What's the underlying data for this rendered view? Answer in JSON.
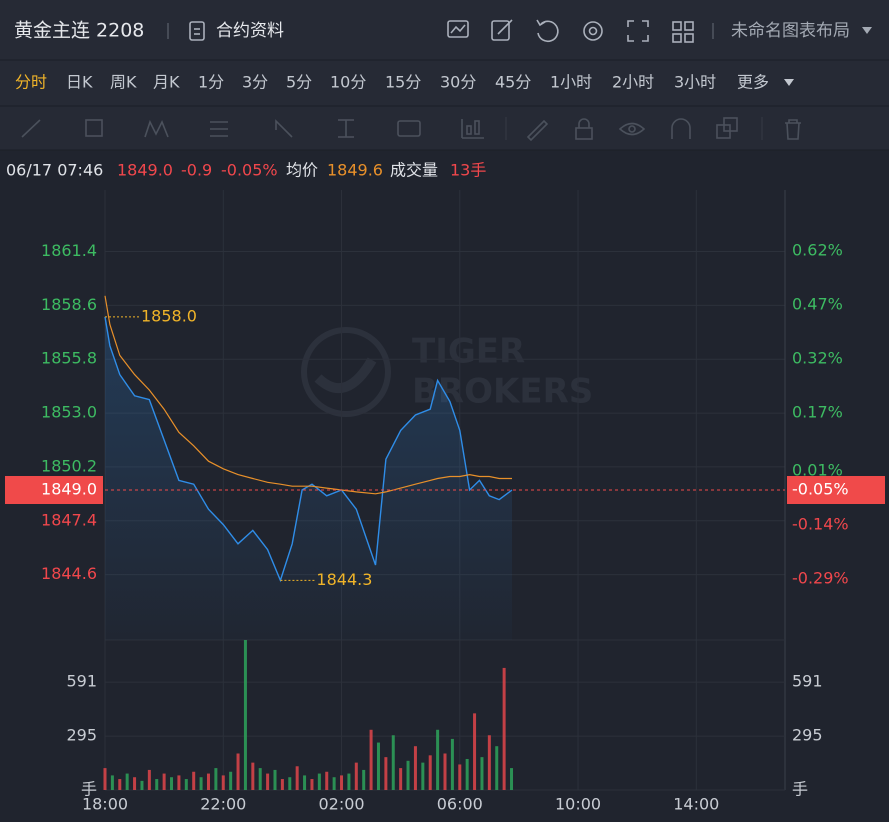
{
  "header": {
    "title": "黄金主连 2208",
    "contract_info": "合约资料",
    "layout_name": "未命名图表布局"
  },
  "timeframes": {
    "items": [
      "分时",
      "日K",
      "周K",
      "月K",
      "1分",
      "3分",
      "5分",
      "10分",
      "15分",
      "30分",
      "45分",
      "1小时",
      "2小时",
      "3小时"
    ],
    "active": 0,
    "more": "更多"
  },
  "info": {
    "datetime": "06/17 07:46",
    "price": "1849.0",
    "change": "-0.9",
    "change_pct": "-0.05%",
    "avg_label": "均价",
    "avg": "1849.6",
    "volume_label": "成交量",
    "volume": "13手"
  },
  "watermark": [
    "TIGER",
    "BROKERS"
  ],
  "chart_data": {
    "type": "line",
    "xlim": [
      "18:00",
      "17:00"
    ],
    "xticks": [
      "18:00",
      "22:00",
      "02:00",
      "06:00",
      "10:00",
      "14:00"
    ],
    "ylim": [
      1841.2,
      1864.6
    ],
    "yticks": [
      1861.4,
      1858.6,
      1855.8,
      {
        "value": 1853.0,
        "label": "1853.0"
      },
      1850.2,
      1847.4,
      1844.6
    ],
    "y2lim": [
      -0.46,
      0.79
    ],
    "y2ticks": [
      {
        "value": 0.62,
        "label": "0.62%"
      },
      {
        "value": 0.47,
        "label": "0.47%"
      },
      {
        "value": 0.32,
        "label": "0.32%"
      },
      {
        "value": 0.17,
        "label": "0.17%"
      },
      {
        "value": 0.01,
        "label": "0.01%"
      },
      {
        "value": -0.14,
        "label": "-0.14%"
      },
      {
        "value": -0.29,
        "label": "-0.29%"
      }
    ],
    "up_color": "#3dbb62",
    "down_color": "#f0474c",
    "grid": true,
    "x": [
      "18:00",
      "18:10",
      "18:30",
      "19:00",
      "19:30",
      "20:00",
      "20:30",
      "21:00",
      "21:30",
      "22:00",
      "22:30",
      "23:00",
      "23:30",
      "23:56",
      "00:20",
      "00:40",
      "01:00",
      "01:30",
      "02:00",
      "02:30",
      "03:09",
      "03:30",
      "04:00",
      "04:30",
      "05:00",
      "05:15",
      "05:40",
      "06:00",
      "06:20",
      "06:40",
      "07:00",
      "07:20",
      "07:46"
    ],
    "series": [
      {
        "color": "#2f8de8",
        "values": [
          1858.0,
          1856.5,
          1855.0,
          1853.9,
          1853.7,
          1851.6,
          1849.5,
          1849.3,
          1848.0,
          1847.2,
          1846.2,
          1846.9,
          1845.9,
          1844.3,
          1846.2,
          1849.0,
          1849.3,
          1848.7,
          1849.0,
          1848.0,
          1845.1,
          1850.6,
          1852.1,
          1852.9,
          1853.2,
          1854.7,
          1853.6,
          1852.1,
          1849.0,
          1849.5,
          1848.7,
          1848.5,
          1849.0
        ]
      },
      {
        "color": "#e8902a",
        "values": [
          1859.1,
          1857.6,
          1856.0,
          1855.0,
          1854.2,
          1853.2,
          1852.0,
          1851.3,
          1850.5,
          1850.1,
          1849.8,
          1849.6,
          1849.4,
          1849.3,
          1849.2,
          1849.2,
          1849.2,
          1849.1,
          1849.0,
          1848.9,
          1848.8,
          1848.9,
          1849.1,
          1849.3,
          1849.5,
          1849.6,
          1849.7,
          1849.7,
          1849.8,
          1849.7,
          1849.7,
          1849.6,
          1849.6
        ]
      }
    ],
    "annotations": [
      {
        "x": "18:00",
        "value": 1858.0,
        "label": "1858.0"
      },
      {
        "x": "23:56",
        "value": 1844.3,
        "label": "1844.3"
      }
    ],
    "last": {
      "value": 1849.0,
      "label": "1849.0",
      "pct": {
        "value": -0.05,
        "label": "-0.05%"
      },
      "color": "#f04a4a"
    },
    "volume": {
      "ylim": [
        0,
        822
      ],
      "yticks": [
        {
          "value": 0,
          "label": "手"
        },
        295,
        591
      ],
      "colors": [
        "#e0454a",
        "#2ea35b"
      ],
      "x": [
        "18:00",
        "18:15",
        "18:30",
        "18:45",
        "19:00",
        "19:15",
        "19:30",
        "19:45",
        "20:00",
        "20:15",
        "20:30",
        "20:45",
        "21:00",
        "21:15",
        "21:30",
        "21:45",
        "22:00",
        "22:15",
        "22:30",
        "22:45",
        "23:00",
        "23:15",
        "23:30",
        "23:45",
        "00:00",
        "00:15",
        "00:30",
        "00:45",
        "01:00",
        "01:15",
        "01:30",
        "01:45",
        "02:00",
        "02:15",
        "02:30",
        "02:45",
        "03:00",
        "03:15",
        "03:30",
        "03:45",
        "04:00",
        "04:15",
        "04:30",
        "04:45",
        "05:00",
        "05:15",
        "05:30",
        "05:45",
        "06:00",
        "06:15",
        "06:30",
        "06:45",
        "07:00",
        "07:15",
        "07:30",
        "07:45"
      ],
      "values": [
        120,
        80,
        60,
        90,
        70,
        50,
        110,
        60,
        90,
        70,
        80,
        60,
        100,
        70,
        90,
        120,
        80,
        100,
        200,
        822,
        150,
        120,
        90,
        110,
        60,
        70,
        130,
        80,
        60,
        90,
        100,
        70,
        80,
        90,
        150,
        110,
        330,
        260,
        180,
        300,
        120,
        160,
        240,
        150,
        190,
        330,
        200,
        280,
        140,
        170,
        420,
        180,
        300,
        240,
        669,
        120
      ]
    }
  }
}
